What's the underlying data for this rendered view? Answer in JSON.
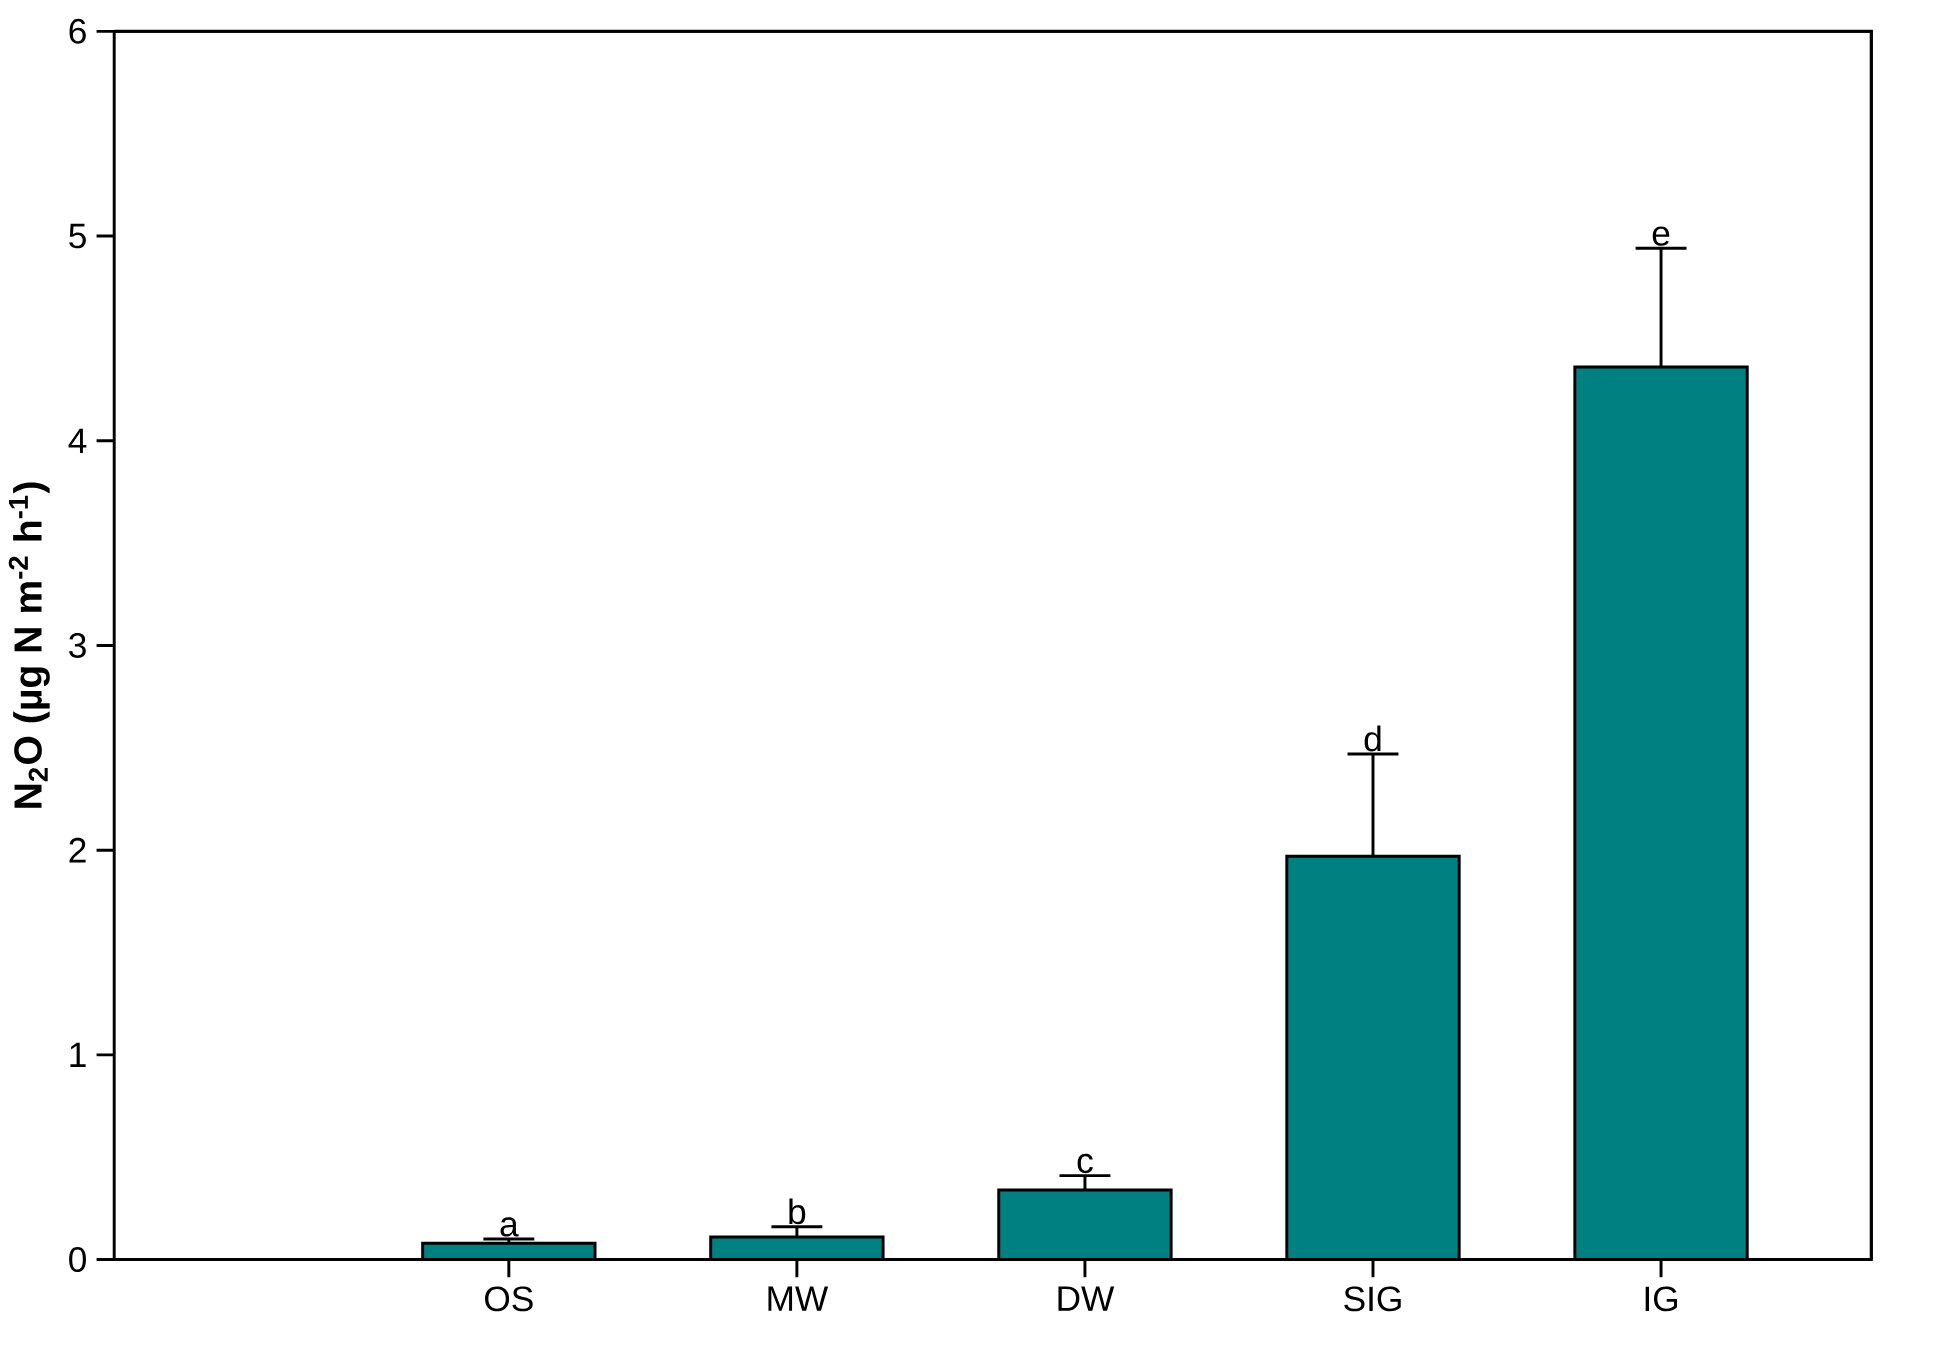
{
  "chart_data": {
    "type": "bar",
    "ylabel": "N$_{2}$O (µg N m$^{-2}$ h$^{-1}$)",
    "categories": [
      "OS",
      "MW",
      "DW",
      "SIG",
      "IG"
    ],
    "values": [
      0.08,
      0.11,
      0.34,
      1.97,
      4.36
    ],
    "errors": [
      [
        0.08,
        0.1
      ],
      [
        0.11,
        0.16
      ],
      [
        0.34,
        0.41
      ],
      [
        1.97,
        2.47
      ],
      [
        4.36,
        4.94
      ]
    ],
    "color": "#008080",
    "ylim": [
      0,
      6
    ],
    "yticks": [
      0,
      1,
      2,
      3,
      4,
      5,
      6
    ],
    "grid": false,
    "annotations": [
      {
        "text": "a",
        "x": "OS",
        "y": 0.1
      },
      {
        "text": "b",
        "x": "MW",
        "y": 0.16
      },
      {
        "text": "c",
        "x": "DW",
        "y": 0.41
      },
      {
        "text": "d",
        "x": "SIG",
        "y": 2.47
      },
      {
        "text": "e",
        "x": "IG",
        "y": 4.94
      }
    ]
  }
}
